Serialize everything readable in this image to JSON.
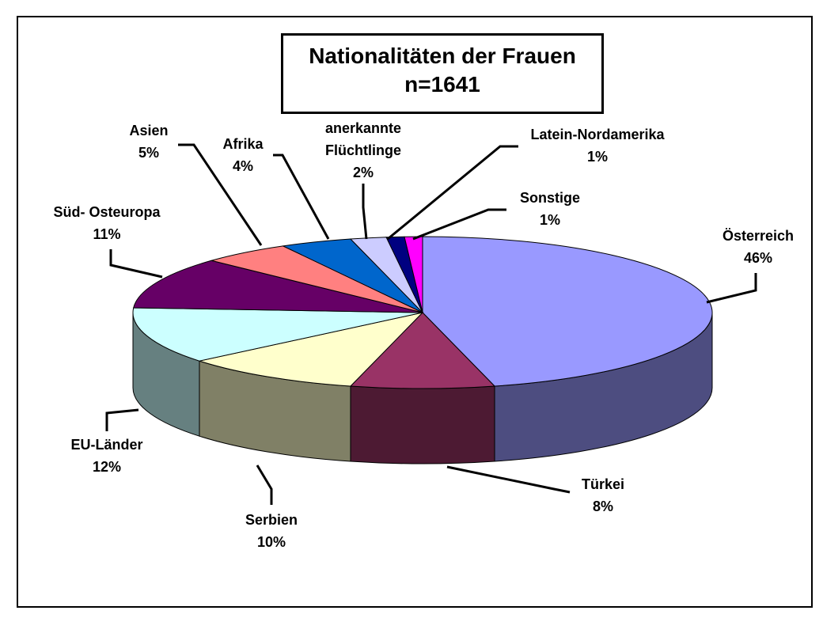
{
  "chart_data": {
    "type": "pie3d",
    "title": "Nationalitäten der Frauen",
    "subtitle": "n=1641",
    "categories": [
      "Österreich",
      "Türkei",
      "Serbien",
      "EU-Länder",
      "Süd- Osteuropa",
      "Asien",
      "Afrika",
      "anerkannte Flüchtlinge",
      "Latein-Nordamerika",
      "Sonstige"
    ],
    "values": [
      46,
      8,
      10,
      12,
      11,
      5,
      4,
      2,
      1,
      1
    ],
    "value_labels": [
      "46%",
      "8%",
      "10%",
      "12%",
      "11%",
      "5%",
      "4%",
      "2%",
      "1%",
      "1%"
    ],
    "colors": [
      "#9999ff",
      "#993366",
      "#ffffcc",
      "#ccffff",
      "#660066",
      "#ff8080",
      "#0066cc",
      "#ccccff",
      "#000080",
      "#ff00ff"
    ]
  }
}
